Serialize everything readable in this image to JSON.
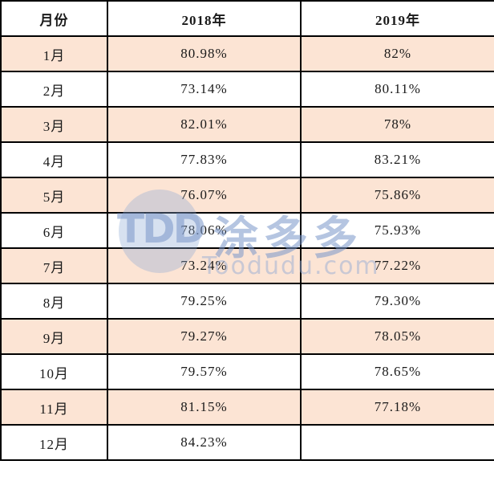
{
  "colors": {
    "shaded_row": "#fce4d4",
    "border": "#000000",
    "watermark_blue": "rgba(120,150,200,0.55)",
    "watermark_blue_weak": "rgba(141,168,211,0.35)",
    "watermark_blue_weak2": "rgba(150,172,212,0.5)"
  },
  "watermark": {
    "logo_text": "TDD",
    "brand_cn": "涂多多",
    "domain": "Toodudu.com"
  },
  "table": {
    "columns": [
      "月份",
      "2018年",
      "2019年"
    ],
    "rows": [
      {
        "month": "1月",
        "y2018": "80.98%",
        "y2019": "82%",
        "shaded": true
      },
      {
        "month": "2月",
        "y2018": "73.14%",
        "y2019": "80.11%",
        "shaded": false
      },
      {
        "month": "3月",
        "y2018": "82.01%",
        "y2019": "78%",
        "shaded": true
      },
      {
        "month": "4月",
        "y2018": "77.83%",
        "y2019": "83.21%",
        "shaded": false
      },
      {
        "month": "5月",
        "y2018": "76.07%",
        "y2019": "75.86%",
        "shaded": true
      },
      {
        "month": "6月",
        "y2018": "78.06%",
        "y2019": "75.93%",
        "shaded": false
      },
      {
        "month": "7月",
        "y2018": "73.24%",
        "y2019": "77.22%",
        "shaded": true
      },
      {
        "month": "8月",
        "y2018": "79.25%",
        "y2019": "79.30%",
        "shaded": false
      },
      {
        "month": "9月",
        "y2018": "79.27%",
        "y2019": "78.05%",
        "shaded": true
      },
      {
        "month": "10月",
        "y2018": "79.57%",
        "y2019": "78.65%",
        "shaded": false
      },
      {
        "month": "11月",
        "y2018": "81.15%",
        "y2019": "77.18%",
        "shaded": true
      },
      {
        "month": "12月",
        "y2018": "84.23%",
        "y2019": "",
        "shaded": false
      }
    ]
  },
  "chart_data": {
    "type": "table",
    "title": "",
    "columns": [
      "月份",
      "2018年",
      "2019年"
    ],
    "categories": [
      "1月",
      "2月",
      "3月",
      "4月",
      "5月",
      "6月",
      "7月",
      "8月",
      "9月",
      "10月",
      "11月",
      "12月"
    ],
    "series": [
      {
        "name": "2018年",
        "values": [
          80.98,
          73.14,
          82.01,
          77.83,
          76.07,
          78.06,
          73.24,
          79.25,
          79.27,
          79.57,
          81.15,
          84.23
        ]
      },
      {
        "name": "2019年",
        "values": [
          82,
          80.11,
          78,
          83.21,
          75.86,
          75.93,
          77.22,
          79.3,
          78.05,
          78.65,
          77.18,
          null
        ]
      }
    ],
    "unit": "%"
  }
}
